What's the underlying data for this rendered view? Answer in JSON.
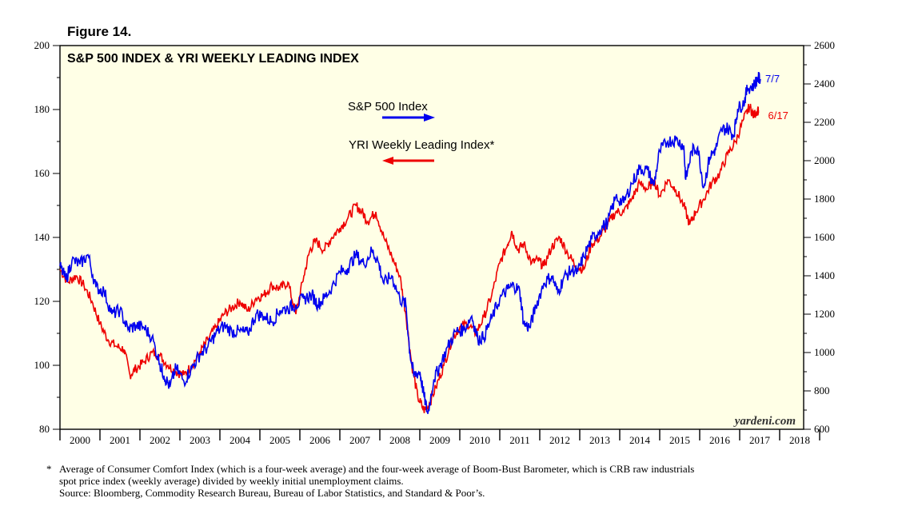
{
  "figure_label": "Figure 14.",
  "chart_data": {
    "type": "line",
    "title": "S&P 500 INDEX & YRI WEEKLY LEADING INDEX",
    "x_tick_labels": [
      "2000",
      "2001",
      "2002",
      "2003",
      "2004",
      "2005",
      "2006",
      "2007",
      "2008",
      "2009",
      "2010",
      "2011",
      "2012",
      "2013",
      "2014",
      "2015",
      "2016",
      "2017",
      "2018"
    ],
    "xlim": [
      2000.0,
      2018.6
    ],
    "left_axis": {
      "ylim": [
        80,
        200
      ],
      "ticks": [
        80,
        100,
        120,
        140,
        160,
        180,
        200
      ],
      "series": "YRI Weekly Leading Index*"
    },
    "right_axis": {
      "ylim": [
        600,
        2600
      ],
      "ticks": [
        600,
        800,
        1000,
        1200,
        1400,
        1600,
        1800,
        2000,
        2200,
        2400,
        2600
      ],
      "series": "S&P 500 Index"
    },
    "series": [
      {
        "name": "S&P 500 Index",
        "axis": "right",
        "color": "#0000ee",
        "end_label": "7/7",
        "points": [
          [
            2000.0,
            1450
          ],
          [
            2000.15,
            1380
          ],
          [
            2000.3,
            1480
          ],
          [
            2000.5,
            1460
          ],
          [
            2000.7,
            1510
          ],
          [
            2000.9,
            1340
          ],
          [
            2001.1,
            1320
          ],
          [
            2001.3,
            1200
          ],
          [
            2001.5,
            1220
          ],
          [
            2001.7,
            1120
          ],
          [
            2001.9,
            1140
          ],
          [
            2002.1,
            1130
          ],
          [
            2002.3,
            1080
          ],
          [
            2002.5,
            940
          ],
          [
            2002.6,
            880
          ],
          [
            2002.75,
            820
          ],
          [
            2002.9,
            920
          ],
          [
            2003.1,
            850
          ],
          [
            2003.3,
            920
          ],
          [
            2003.5,
            990
          ],
          [
            2003.7,
            1030
          ],
          [
            2003.9,
            1100
          ],
          [
            2004.1,
            1140
          ],
          [
            2004.3,
            1110
          ],
          [
            2004.5,
            1110
          ],
          [
            2004.7,
            1100
          ],
          [
            2004.9,
            1200
          ],
          [
            2005.1,
            1190
          ],
          [
            2005.3,
            1160
          ],
          [
            2005.5,
            1220
          ],
          [
            2005.7,
            1230
          ],
          [
            2005.9,
            1250
          ],
          [
            2006.1,
            1280
          ],
          [
            2006.3,
            1300
          ],
          [
            2006.45,
            1250
          ],
          [
            2006.6,
            1280
          ],
          [
            2006.8,
            1340
          ],
          [
            2007.0,
            1420
          ],
          [
            2007.2,
            1440
          ],
          [
            2007.4,
            1510
          ],
          [
            2007.6,
            1460
          ],
          [
            2007.8,
            1530
          ],
          [
            2007.95,
            1480
          ],
          [
            2008.1,
            1360
          ],
          [
            2008.3,
            1400
          ],
          [
            2008.5,
            1280
          ],
          [
            2008.65,
            1250
          ],
          [
            2008.75,
            1000
          ],
          [
            2008.85,
            880
          ],
          [
            2009.0,
            900
          ],
          [
            2009.1,
            780
          ],
          [
            2009.2,
            680
          ],
          [
            2009.35,
            860
          ],
          [
            2009.5,
            930
          ],
          [
            2009.7,
            1030
          ],
          [
            2009.9,
            1110
          ],
          [
            2010.1,
            1120
          ],
          [
            2010.3,
            1190
          ],
          [
            2010.45,
            1070
          ],
          [
            2010.6,
            1080
          ],
          [
            2010.8,
            1180
          ],
          [
            2011.0,
            1280
          ],
          [
            2011.2,
            1330
          ],
          [
            2011.35,
            1350
          ],
          [
            2011.5,
            1320
          ],
          [
            2011.6,
            1150
          ],
          [
            2011.75,
            1130
          ],
          [
            2011.9,
            1240
          ],
          [
            2012.1,
            1360
          ],
          [
            2012.3,
            1400
          ],
          [
            2012.45,
            1310
          ],
          [
            2012.6,
            1390
          ],
          [
            2012.8,
            1430
          ],
          [
            2012.95,
            1420
          ],
          [
            2013.1,
            1500
          ],
          [
            2013.3,
            1590
          ],
          [
            2013.5,
            1640
          ],
          [
            2013.7,
            1680
          ],
          [
            2013.9,
            1810
          ],
          [
            2014.1,
            1780
          ],
          [
            2014.3,
            1880
          ],
          [
            2014.5,
            1960
          ],
          [
            2014.7,
            1950
          ],
          [
            2014.85,
            1870
          ],
          [
            2015.0,
            2050
          ],
          [
            2015.2,
            2100
          ],
          [
            2015.4,
            2110
          ],
          [
            2015.6,
            2080
          ],
          [
            2015.65,
            1900
          ],
          [
            2015.8,
            2050
          ],
          [
            2015.95,
            2070
          ],
          [
            2016.1,
            1860
          ],
          [
            2016.25,
            2020
          ],
          [
            2016.4,
            2060
          ],
          [
            2016.55,
            2160
          ],
          [
            2016.7,
            2170
          ],
          [
            2016.85,
            2130
          ],
          [
            2016.95,
            2270
          ],
          [
            2017.1,
            2300
          ],
          [
            2017.2,
            2380
          ],
          [
            2017.35,
            2390
          ],
          [
            2017.45,
            2430
          ],
          [
            2017.52,
            2425
          ]
        ]
      },
      {
        "name": "YRI Weekly Leading Index*",
        "axis": "left",
        "color": "#ee0000",
        "end_label": "6/17",
        "points": [
          [
            2000.0,
            130
          ],
          [
            2000.2,
            126
          ],
          [
            2000.4,
            128
          ],
          [
            2000.6,
            125
          ],
          [
            2000.8,
            120
          ],
          [
            2001.0,
            113
          ],
          [
            2001.2,
            108
          ],
          [
            2001.4,
            106
          ],
          [
            2001.6,
            105
          ],
          [
            2001.75,
            97
          ],
          [
            2001.9,
            99
          ],
          [
            2002.1,
            101
          ],
          [
            2002.3,
            104
          ],
          [
            2002.5,
            103
          ],
          [
            2002.7,
            100
          ],
          [
            2002.9,
            98
          ],
          [
            2003.1,
            97
          ],
          [
            2003.3,
            100
          ],
          [
            2003.5,
            104
          ],
          [
            2003.7,
            108
          ],
          [
            2003.9,
            112
          ],
          [
            2004.1,
            116
          ],
          [
            2004.3,
            118
          ],
          [
            2004.5,
            120
          ],
          [
            2004.7,
            117
          ],
          [
            2004.9,
            121
          ],
          [
            2005.1,
            122
          ],
          [
            2005.3,
            125
          ],
          [
            2005.5,
            124
          ],
          [
            2005.7,
            126
          ],
          [
            2005.9,
            116
          ],
          [
            2006.1,
            128
          ],
          [
            2006.25,
            136
          ],
          [
            2006.4,
            139
          ],
          [
            2006.6,
            136
          ],
          [
            2006.8,
            140
          ],
          [
            2007.0,
            143
          ],
          [
            2007.2,
            146
          ],
          [
            2007.4,
            150
          ],
          [
            2007.55,
            148
          ],
          [
            2007.7,
            145
          ],
          [
            2007.9,
            148
          ],
          [
            2008.1,
            140
          ],
          [
            2008.3,
            134
          ],
          [
            2008.5,
            128
          ],
          [
            2008.65,
            116
          ],
          [
            2008.8,
            100
          ],
          [
            2008.95,
            90
          ],
          [
            2009.1,
            86
          ],
          [
            2009.2,
            87
          ],
          [
            2009.4,
            93
          ],
          [
            2009.6,
            100
          ],
          [
            2009.8,
            108
          ],
          [
            2010.0,
            112
          ],
          [
            2010.2,
            113
          ],
          [
            2010.4,
            110
          ],
          [
            2010.6,
            115
          ],
          [
            2010.8,
            122
          ],
          [
            2011.0,
            132
          ],
          [
            2011.2,
            138
          ],
          [
            2011.3,
            142
          ],
          [
            2011.45,
            136
          ],
          [
            2011.6,
            138
          ],
          [
            2011.8,
            132
          ],
          [
            2011.95,
            133
          ],
          [
            2012.1,
            131
          ],
          [
            2012.3,
            137
          ],
          [
            2012.5,
            140
          ],
          [
            2012.7,
            135
          ],
          [
            2012.9,
            131
          ],
          [
            2013.1,
            130
          ],
          [
            2013.3,
            138
          ],
          [
            2013.5,
            140
          ],
          [
            2013.7,
            144
          ],
          [
            2013.9,
            148
          ],
          [
            2014.1,
            148
          ],
          [
            2014.3,
            152
          ],
          [
            2014.5,
            157
          ],
          [
            2014.7,
            155
          ],
          [
            2014.85,
            158
          ],
          [
            2015.0,
            153
          ],
          [
            2015.2,
            158
          ],
          [
            2015.4,
            155
          ],
          [
            2015.6,
            150
          ],
          [
            2015.75,
            144
          ],
          [
            2015.9,
            148
          ],
          [
            2016.1,
            152
          ],
          [
            2016.3,
            157
          ],
          [
            2016.5,
            160
          ],
          [
            2016.7,
            166
          ],
          [
            2016.9,
            170
          ],
          [
            2017.1,
            177
          ],
          [
            2017.25,
            181
          ],
          [
            2017.35,
            178
          ],
          [
            2017.45,
            180
          ],
          [
            2017.47,
            179
          ]
        ]
      }
    ],
    "legend": [
      "S&P 500 Index",
      "YRI Weekly Leading Index*"
    ],
    "watermark": "yardeni.com"
  },
  "footnote": {
    "marker": "*",
    "line1": "Average of Consumer Comfort Index (which is a four-week average) and the four-week average of Boom-Bust Barometer, which is CRB raw industrials",
    "line2": "spot price index (weekly average) divided by weekly initial unemployment claims.",
    "line3": "Source: Bloomberg, Commodity Research Bureau, Bureau of Labor Statistics, and Standard & Poor’s."
  },
  "colors": {
    "plot_background": "#ffffe6",
    "sp500": "#0000ee",
    "leading": "#ee0000"
  }
}
